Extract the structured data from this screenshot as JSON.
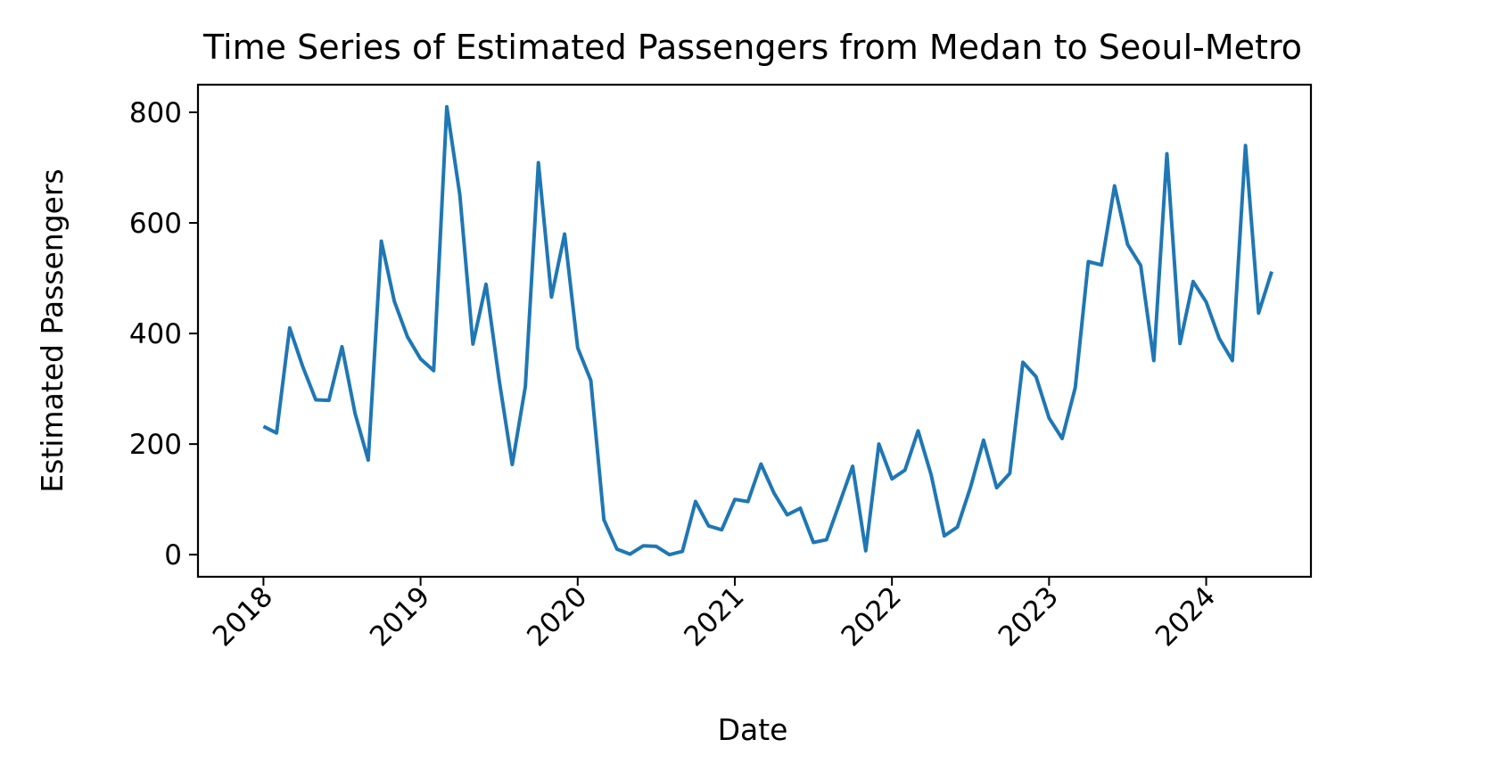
{
  "chart_data": {
    "type": "line",
    "title": "Time Series of Estimated Passengers from Medan to Seoul-Metro",
    "xlabel": "Date",
    "ylabel": "Estimated Passengers",
    "x_ticks": [
      "2018",
      "2019",
      "2020",
      "2021",
      "2022",
      "2023",
      "2024"
    ],
    "y_ticks": [
      0,
      200,
      400,
      600,
      800
    ],
    "xlim": [
      "2017-08",
      "2024-09"
    ],
    "ylim": [
      -40,
      850
    ],
    "grid": false,
    "legend": "none",
    "series": [
      {
        "color": "#1f77b4",
        "x": [
          "2018-01",
          "2018-02",
          "2018-03",
          "2018-04",
          "2018-05",
          "2018-06",
          "2018-07",
          "2018-08",
          "2018-09",
          "2018-10",
          "2018-11",
          "2018-12",
          "2019-01",
          "2019-02",
          "2019-03",
          "2019-04",
          "2019-05",
          "2019-06",
          "2019-07",
          "2019-08",
          "2019-09",
          "2019-10",
          "2019-11",
          "2019-12",
          "2020-01",
          "2020-02",
          "2020-03",
          "2020-04",
          "2020-05",
          "2020-06",
          "2020-07",
          "2020-08",
          "2020-09",
          "2020-10",
          "2020-11",
          "2020-12",
          "2021-01",
          "2021-02",
          "2021-03",
          "2021-04",
          "2021-05",
          "2021-06",
          "2021-07",
          "2021-08",
          "2021-09",
          "2021-10",
          "2021-11",
          "2021-12",
          "2022-01",
          "2022-02",
          "2022-03",
          "2022-04",
          "2022-05",
          "2022-06",
          "2022-07",
          "2022-08",
          "2022-09",
          "2022-10",
          "2022-11",
          "2022-12",
          "2023-01",
          "2023-02",
          "2023-03",
          "2023-04",
          "2023-05",
          "2023-06",
          "2023-07",
          "2023-08",
          "2023-09",
          "2023-10",
          "2023-11",
          "2023-12",
          "2024-01",
          "2024-02",
          "2024-03",
          "2024-04",
          "2024-05",
          "2024-06"
        ],
        "values": [
          232,
          220,
          410,
          340,
          280,
          279,
          376,
          255,
          171,
          567,
          458,
          394,
          354,
          333,
          810,
          651,
          381,
          489,
          316,
          163,
          304,
          709,
          466,
          580,
          374,
          315,
          63,
          10,
          1,
          16,
          15,
          0,
          6,
          96,
          52,
          45,
          100,
          96,
          164,
          111,
          72,
          84,
          22,
          27,
          93,
          160,
          7,
          200,
          137,
          153,
          224,
          144,
          34,
          50,
          122,
          207,
          121,
          147,
          348,
          322,
          247,
          210,
          302,
          530,
          524,
          667,
          561,
          523,
          351,
          725,
          382,
          494,
          457,
          391,
          351,
          740,
          437,
          512
        ]
      }
    ]
  }
}
